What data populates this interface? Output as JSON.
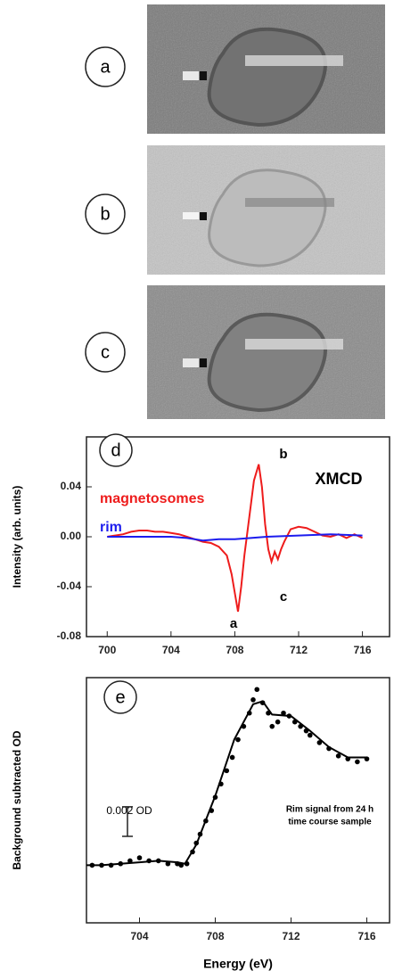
{
  "panels": [
    {
      "label": "a"
    },
    {
      "label": "b"
    },
    {
      "label": "c"
    }
  ],
  "chart_data": [
    {
      "type": "line",
      "label": "d",
      "y_label": "Intensity (arb. units)",
      "xlim": [
        698.7,
        717.7
      ],
      "xticks": [
        700,
        704,
        708,
        712,
        716
      ],
      "ylim": [
        -0.08,
        0.08
      ],
      "yticks": [
        0.04,
        {
          "value": 0,
          "label": "0.00"
        },
        -0.04,
        -0.08
      ],
      "annotations": [
        "b",
        "XMCD",
        "c",
        "a"
      ],
      "series": [
        {
          "name": "magnetosomes",
          "color": "#ee1c1c",
          "x": [
            700,
            700.5,
            701,
            701.5,
            702,
            702.5,
            703,
            703.5,
            704,
            704.5,
            705,
            705.5,
            706,
            706.5,
            707,
            707.5,
            707.8,
            708,
            708.2,
            708.4,
            708.6,
            708.8,
            709,
            709.2,
            709.5,
            709.7,
            709.9,
            710.1,
            710.3,
            710.5,
            710.7,
            710.9,
            711.1,
            711.5,
            712,
            712.5,
            713,
            713.5,
            714,
            714.5,
            715,
            715.5,
            716
          ],
          "values": [
            0,
            0.001,
            0.002,
            0.004,
            0.005,
            0.005,
            0.004,
            0.004,
            0.003,
            0.002,
            0,
            -0.002,
            -0.004,
            -0.005,
            -0.008,
            -0.015,
            -0.03,
            -0.045,
            -0.06,
            -0.04,
            -0.015,
            0.005,
            0.025,
            0.045,
            0.058,
            0.04,
            0.01,
            -0.01,
            -0.02,
            -0.012,
            -0.018,
            -0.01,
            -0.004,
            0.006,
            0.008,
            0.007,
            0.004,
            0.001,
            0,
            0.002,
            -0.001,
            0.002,
            -0.001
          ]
        },
        {
          "name": "rim",
          "color": "#1c1cee",
          "x": [
            700,
            702,
            704,
            705,
            706,
            707,
            708,
            709,
            710,
            712,
            714,
            716
          ],
          "values": [
            0,
            0,
            0,
            -0.001,
            -0.003,
            -0.002,
            -0.002,
            -0.001,
            0,
            0.001,
            0.002,
            0.001
          ]
        }
      ]
    },
    {
      "type": "line",
      "label": "e",
      "y_label": "Background subtracted OD",
      "x_label": "Energy (eV)",
      "xlim": [
        701.2,
        717.2
      ],
      "xticks": [
        704,
        708,
        712,
        716
      ],
      "ylim": [
        0,
        0.0166
      ],
      "scale_bar": {
        "label": "0.002 OD",
        "value": 0.002
      },
      "annotations": [
        "Rim signal from 24 h",
        "time course sample"
      ],
      "series": [
        {
          "color": "#000000",
          "marker": true,
          "x": [
            701.5,
            702,
            702.5,
            703,
            703.5,
            704,
            704.5,
            705,
            705.5,
            706,
            706.2,
            706.5,
            706.8,
            707,
            707.2,
            707.5,
            707.8,
            708,
            708.3,
            708.6,
            708.9,
            709.2,
            709.5,
            709.8,
            710,
            710.2,
            710.5,
            710.8,
            711,
            711.3,
            711.6,
            711.9,
            712.2,
            712.5,
            712.8,
            713,
            713.5,
            714,
            714.5,
            715,
            715.5,
            716
          ],
          "values": [
            0.0039,
            0.0039,
            0.0039,
            0.004,
            0.0042,
            0.0044,
            0.0042,
            0.0042,
            0.004,
            0.004,
            0.0039,
            0.004,
            0.0048,
            0.0054,
            0.006,
            0.0069,
            0.0076,
            0.0085,
            0.0094,
            0.0103,
            0.0112,
            0.0124,
            0.0133,
            0.0142,
            0.0151,
            0.0158,
            0.0149,
            0.0142,
            0.0133,
            0.0136,
            0.0142,
            0.014,
            0.0136,
            0.0133,
            0.013,
            0.0127,
            0.0122,
            0.0118,
            0.0113,
            0.0111,
            0.0109,
            0.0111
          ]
        },
        {
          "color": "#000000",
          "marker": false,
          "x": [
            701.2,
            702,
            703,
            704,
            705,
            706,
            706.4,
            707,
            708,
            709,
            710,
            710.5,
            711,
            712,
            713,
            714,
            715,
            716
          ],
          "values": [
            0.0039,
            0.0039,
            0.004,
            0.0041,
            0.0042,
            0.0041,
            0.004,
            0.0053,
            0.0086,
            0.0124,
            0.0148,
            0.015,
            0.0141,
            0.014,
            0.013,
            0.0119,
            0.0112,
            0.0112
          ]
        }
      ]
    }
  ]
}
